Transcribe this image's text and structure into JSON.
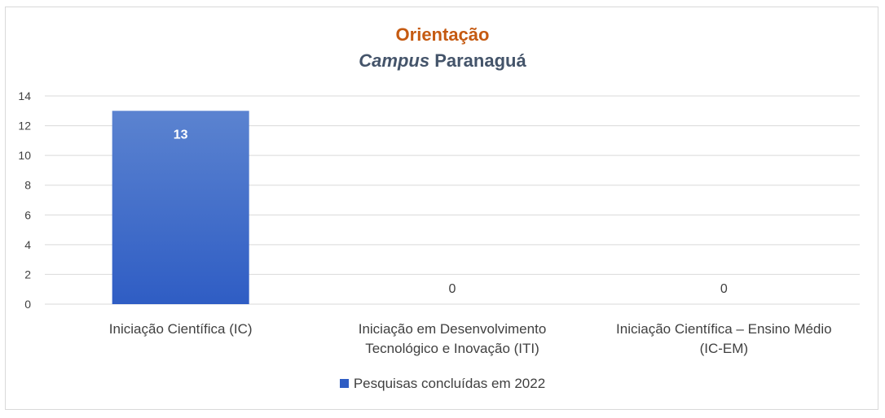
{
  "chart_data": {
    "type": "bar",
    "title_line1": "Orientação",
    "title_line2_italic": "Campus",
    "title_line2_rest": " Paranaguá",
    "categories": [
      [
        "Iniciação Científica (IC)"
      ],
      [
        "Iniciação em Desenvolvimento",
        "Tecnológico e Inovação (ITI)"
      ],
      [
        "Iniciação Científica – Ensino Médio",
        "(IC-EM)"
      ]
    ],
    "series": [
      {
        "name": "Pesquisas concluídas em 2022",
        "values": [
          13,
          0,
          0
        ]
      }
    ],
    "ylim": [
      0,
      14
    ],
    "yticks": [
      0,
      2,
      4,
      6,
      8,
      10,
      12,
      14
    ],
    "grid": true,
    "legend_position": "bottom",
    "colors": {
      "title1": "#C55A11",
      "title2": "#44546A",
      "bar_top": "#5B83D0",
      "bar_bottom": "#2F5DC4",
      "grid": "#d9d9d9"
    }
  }
}
